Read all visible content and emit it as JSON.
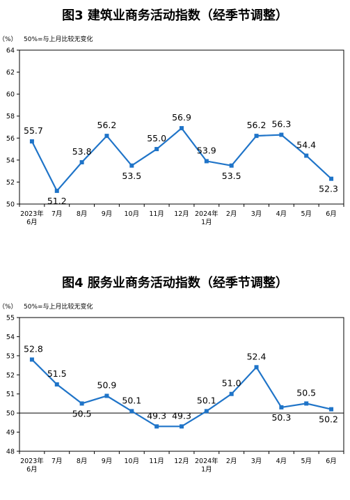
{
  "chart_data": [
    {
      "type": "line",
      "title": "图3  建筑业商务活动指数（经季节调整）",
      "ylabel": "（%）",
      "note": "50%=与上月比较无变化",
      "ylim": [
        50,
        64
      ],
      "yticks": [
        "50",
        "52",
        "54",
        "56",
        "58",
        "60",
        "62",
        "64"
      ],
      "categories": [
        [
          "2023年",
          "6月"
        ],
        [
          "7月"
        ],
        [
          "8月"
        ],
        [
          "9月"
        ],
        [
          "10月"
        ],
        [
          "11月"
        ],
        [
          "12月"
        ],
        [
          "2024年",
          "1月"
        ],
        [
          "2月"
        ],
        [
          "3月"
        ],
        [
          "4月"
        ],
        [
          "5月"
        ],
        [
          "6月"
        ]
      ],
      "values": [
        55.7,
        51.2,
        53.8,
        56.2,
        53.5,
        55.0,
        56.9,
        53.9,
        53.5,
        56.2,
        56.3,
        54.4,
        52.3
      ],
      "data_labels": [
        "55.7",
        "51.2",
        "53.8",
        "56.2",
        "53.5",
        "55.0",
        "56.9",
        "53.9",
        "53.5",
        "56.2",
        "56.3",
        "54.4",
        "52.3"
      ],
      "reference_line": null,
      "color": "#1f74c8",
      "grid": false
    },
    {
      "type": "line",
      "title": "图4  服务业商务活动指数（经季节调整）",
      "ylabel": "（%）",
      "note": "50%=与上月比较无变化",
      "ylim": [
        48,
        55
      ],
      "yticks": [
        "48",
        "49",
        "50",
        "51",
        "52",
        "53",
        "54",
        "55"
      ],
      "categories": [
        [
          "2023年",
          "6月"
        ],
        [
          "7月"
        ],
        [
          "8月"
        ],
        [
          "9月"
        ],
        [
          "10月"
        ],
        [
          "11月"
        ],
        [
          "12月"
        ],
        [
          "2024年",
          "1月"
        ],
        [
          "2月"
        ],
        [
          "3月"
        ],
        [
          "4月"
        ],
        [
          "5月"
        ],
        [
          "6月"
        ]
      ],
      "values": [
        52.8,
        51.5,
        50.5,
        50.9,
        50.1,
        49.3,
        49.3,
        50.1,
        51.0,
        52.4,
        50.3,
        50.5,
        50.2
      ],
      "data_labels": [
        "52.8",
        "51.5",
        "50.5",
        "50.9",
        "50.1",
        "49.3",
        "49.3",
        "50.1",
        "51.0",
        "52.4",
        "50.3",
        "50.5",
        "50.2"
      ],
      "reference_line": 50,
      "color": "#1f74c8",
      "grid": false
    }
  ]
}
